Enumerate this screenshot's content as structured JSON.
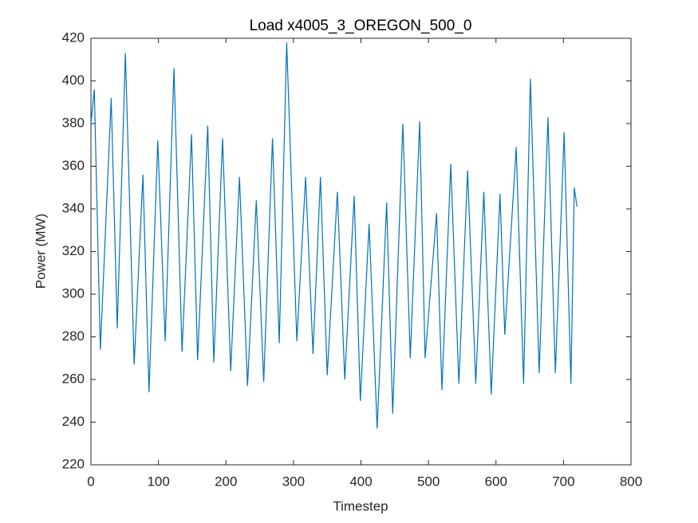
{
  "chart_data": {
    "type": "line",
    "title": "Load x4005_3_OREGON_500_0",
    "x_label": "Timestep",
    "y_label": "Power (MW)",
    "x": [
      0,
      5,
      14,
      30,
      39,
      51,
      64,
      77,
      86,
      99,
      110,
      123,
      135,
      149,
      158,
      173,
      182,
      195,
      207,
      220,
      232,
      245,
      256,
      269,
      279,
      290,
      305,
      318,
      329,
      340,
      350,
      365,
      376,
      390,
      399,
      412,
      424,
      438,
      447,
      462,
      473,
      487,
      495,
      512,
      520,
      533,
      545,
      558,
      570,
      582,
      593,
      606,
      613,
      630,
      641,
      651,
      664,
      677,
      688,
      701,
      711,
      716,
      720
    ],
    "series": [
      {
        "name": "Load",
        "color": "#0072bd",
        "values": [
          380,
          396,
          274,
          392,
          284,
          413,
          267,
          356,
          254,
          372,
          278,
          406,
          273,
          375,
          269,
          379,
          268,
          373,
          264,
          355,
          257,
          344,
          259,
          373,
          277,
          418,
          278,
          355,
          272,
          355,
          262,
          348,
          260,
          346,
          250,
          333,
          237,
          343,
          244,
          380,
          270,
          381,
          270,
          338,
          255,
          361,
          258,
          358,
          258,
          348,
          253,
          347,
          281,
          369,
          258,
          401,
          263,
          383,
          263,
          376,
          258,
          350,
          341
        ]
      }
    ],
    "xlim": [
      0,
      800
    ],
    "xticks": [
      0,
      100,
      200,
      300,
      400,
      500,
      600,
      700,
      800
    ],
    "ylim": [
      220,
      420
    ],
    "yticks": [
      220,
      240,
      260,
      280,
      300,
      320,
      340,
      360,
      380,
      400,
      420
    ]
  }
}
